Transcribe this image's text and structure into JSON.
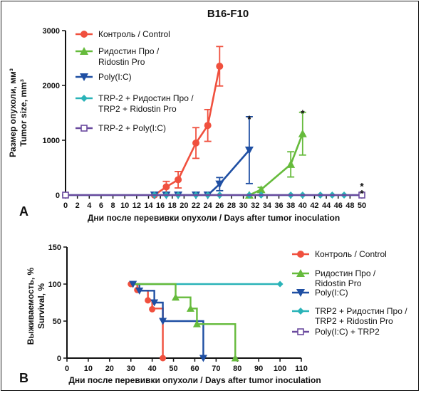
{
  "chart_data": [
    {
      "panel": "A",
      "type": "line",
      "title": "B16-F10",
      "ylabel_lines": [
        "Размер опухоли, мм³",
        "Tumor size, mm³"
      ],
      "xlabel": "Дни после перевивки опухоли / Days after tumor inoculation",
      "xlim": [
        0,
        50
      ],
      "ylim": [
        0,
        3000
      ],
      "xticks": [
        0,
        2,
        4,
        6,
        8,
        10,
        12,
        14,
        16,
        18,
        20,
        22,
        24,
        26,
        28,
        30,
        32,
        34,
        36,
        38,
        40,
        42,
        44,
        46,
        48,
        50
      ],
      "yticks": [
        0,
        1000,
        2000,
        3000
      ],
      "grid": false,
      "legend_position": "top-left",
      "series": [
        {
          "name": "Контроль / Control",
          "color": "#f0503e",
          "marker": "circle",
          "x": [
            15,
            17,
            19,
            22,
            24,
            26
          ],
          "y": [
            0,
            150,
            280,
            950,
            1270,
            2350
          ],
          "err": [
            0,
            100,
            150,
            280,
            290,
            360
          ]
        },
        {
          "name": "Ридостин Про / Ridostin Pro",
          "color": "#66bb3c",
          "marker": "triangle-up",
          "x": [
            31,
            33,
            38,
            40
          ],
          "y": [
            0,
            100,
            560,
            1120
          ],
          "err": [
            0,
            40,
            230,
            390
          ]
        },
        {
          "name": "Poly(I:C)",
          "color": "#1f4fa3",
          "marker": "triangle-down",
          "x": [
            15,
            17,
            19,
            22,
            24,
            26,
            31
          ],
          "y": [
            0,
            0,
            0,
            0,
            0,
            200,
            820
          ],
          "err": [
            0,
            0,
            0,
            0,
            0,
            120,
            610
          ]
        },
        {
          "name": "TRP-2 + Ридостин Про / TRP2 + Ridostin Pro",
          "color": "#2ab3b8",
          "marker": "diamond",
          "x": [
            0,
            15,
            17,
            19,
            22,
            24,
            26,
            31,
            33,
            38,
            40,
            43,
            45,
            47,
            50
          ],
          "y": [
            0,
            0,
            0,
            0,
            0,
            0,
            0,
            0,
            0,
            0,
            0,
            0,
            0,
            0,
            0
          ]
        },
        {
          "name": "TRP-2 + Poly(I:C)",
          "color": "#6a4a9e",
          "marker": "square-open",
          "x": [
            0,
            50
          ],
          "y": [
            0,
            0
          ]
        }
      ],
      "annotations": [
        {
          "text": "*",
          "x": 31,
          "y": 1430
        },
        {
          "text": "*",
          "x": 40,
          "y": 1530
        },
        {
          "text": "*",
          "x": 50,
          "y": 200
        },
        {
          "text": "*",
          "x": 50,
          "y": 70
        }
      ]
    },
    {
      "panel": "B",
      "type": "line",
      "title": "",
      "ylabel_lines": [
        "Выживаемость, %",
        "Survival, %"
      ],
      "xlabel": "Дни после перевивки опухоли / Days after tumor inoculation",
      "xlim": [
        0,
        110
      ],
      "ylim": [
        0,
        150
      ],
      "xticks": [
        0,
        10,
        20,
        30,
        40,
        50,
        60,
        70,
        80,
        90,
        100,
        110
      ],
      "yticks": [
        0,
        50,
        100,
        150
      ],
      "grid": false,
      "legend_position": "right",
      "series": [
        {
          "name": "Контроль / Control",
          "color": "#f0503e",
          "marker": "circle",
          "steps": [
            [
              30,
              100
            ],
            [
              33,
              91
            ],
            [
              38,
              78
            ],
            [
              40,
              67
            ],
            [
              45,
              0
            ]
          ],
          "markers": [
            [
              30,
              100
            ],
            [
              33,
              92
            ],
            [
              38,
              78
            ],
            [
              40,
              66
            ],
            [
              45,
              0
            ]
          ]
        },
        {
          "name": "Ридостин Про / Ridostin Pro",
          "color": "#66bb3c",
          "marker": "triangle-up",
          "steps": [
            [
              30,
              100
            ],
            [
              51,
              82
            ],
            [
              58,
              67
            ],
            [
              61,
              46
            ],
            [
              79,
              0
            ]
          ],
          "markers": [
            [
              51,
              82
            ],
            [
              58,
              67
            ],
            [
              61,
              46
            ],
            [
              79,
              0
            ]
          ]
        },
        {
          "name": "Poly(I:C)",
          "color": "#1f4fa3",
          "marker": "triangle-down",
          "steps": [
            [
              30,
              100
            ],
            [
              34,
              91
            ],
            [
              41,
              75
            ],
            [
              45,
              50
            ],
            [
              64,
              0
            ]
          ],
          "markers": [
            [
              31,
              100
            ],
            [
              34,
              91
            ],
            [
              41,
              75
            ],
            [
              45,
              50
            ],
            [
              64,
              0
            ]
          ]
        },
        {
          "name": "TRP2 + Ридостин Про / TRP2 + Ridostin Pro",
          "color": "#2ab3b8",
          "marker": "diamond",
          "steps": [
            [
              30,
              100
            ],
            [
              100,
              100
            ]
          ],
          "markers": [
            [
              30,
              100
            ],
            [
              100,
              100
            ]
          ]
        },
        {
          "name": "Poly(I:C) + TRP2",
          "color": "#6a4a9e",
          "marker": "square-open",
          "steps": [
            [
              30,
              100
            ],
            [
              100,
              100
            ]
          ],
          "markers": []
        }
      ],
      "legend_lines": [
        [
          "Контроль / Control"
        ],
        [
          "Ридостин Про /",
          "Ridostin Pro"
        ],
        [
          "Poly(I:C)"
        ],
        [
          "TRP2 + Ридостин Про /",
          "TRP2 + Ridostin Pro"
        ],
        [
          "Poly(I:C) + TRP2"
        ]
      ]
    }
  ],
  "legend_a_lines": [
    [
      "Контроль / Control"
    ],
    [
      "Ридостин Про /",
      "Ridostin Pro"
    ],
    [
      "Poly(I:C)"
    ],
    [
      "TRP-2 + Ридостин Про /",
      "TRP2 + Ridostin Pro"
    ],
    [
      "TRP-2 + Poly(I:C)"
    ]
  ]
}
